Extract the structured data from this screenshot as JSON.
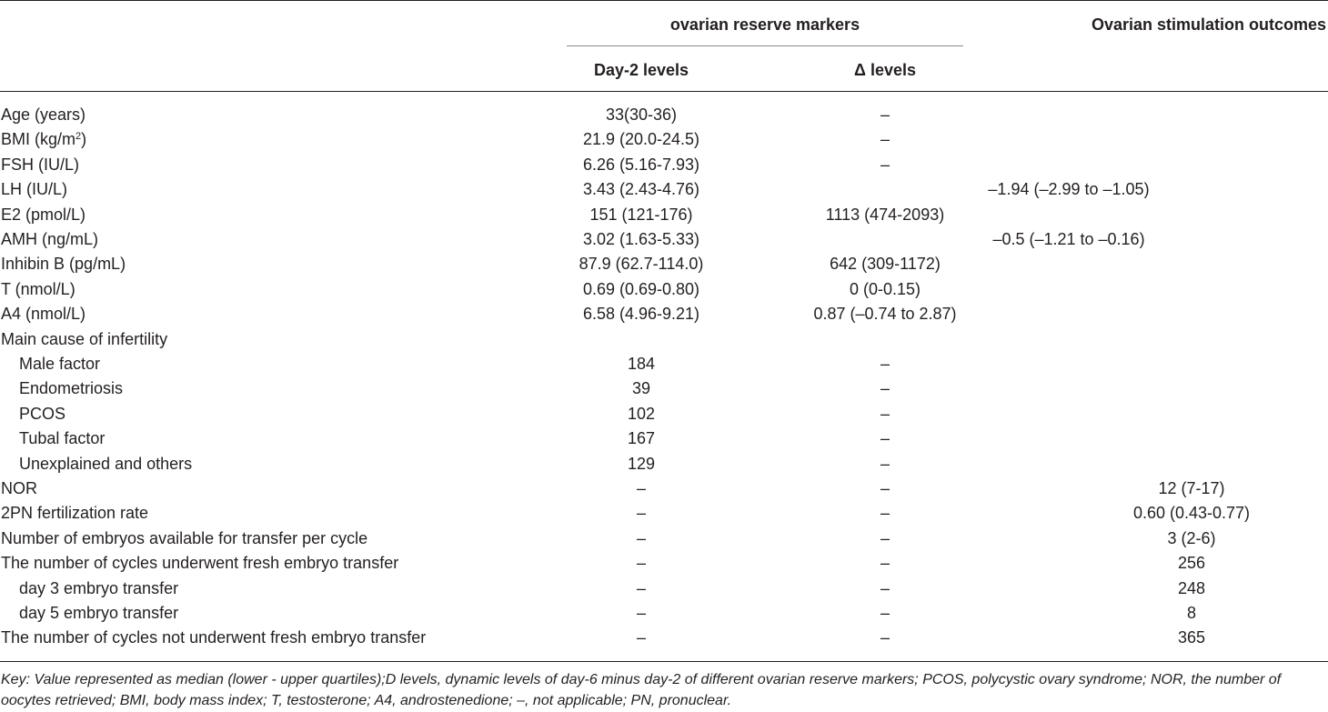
{
  "header": {
    "group_title": "ovarian reserve markers",
    "col_day2": "Day-2 levels",
    "col_delta": "Δ levels",
    "col_outcomes": "Ovarian stimulation outcomes"
  },
  "rows": [
    {
      "label": "Age (years)",
      "day2": "33(30-36)",
      "delta": "–",
      "outcome": ""
    },
    {
      "label": "BMI (kg/m",
      "label_sup": "2",
      "label_end": ")",
      "day2": "21.9 (20.0-24.5)",
      "delta": "–",
      "outcome": ""
    },
    {
      "label": "FSH (IU/L)",
      "day2": "6.26 (5.16-7.93)",
      "delta": "–",
      "outcome": ""
    },
    {
      "label": "LH (IU/L)",
      "day2": "3.43 (2.43-4.76)",
      "delta": "",
      "outcome": "–1.94 (–2.99 to –1.05)"
    },
    {
      "label": "E2 (pmol/L)",
      "day2": "151 (121-176)",
      "delta": "1113 (474-2093)",
      "outcome": ""
    },
    {
      "label": "AMH (ng/mL)",
      "day2": "3.02 (1.63-5.33)",
      "delta": "",
      "outcome": "–0.5 (–1.21 to –0.16)"
    },
    {
      "label": "Inhibin B (pg/mL)",
      "day2": "87.9 (62.7-114.0)",
      "delta": "642 (309-1172)",
      "outcome": ""
    },
    {
      "label": "T (nmol/L)",
      "day2": "0.69 (0.69-0.80)",
      "delta": "0 (0-0.15)",
      "outcome": ""
    },
    {
      "label": "A4 (nmol/L)",
      "day2": "6.58 (4.96-9.21)",
      "delta": "0.87 (–0.74 to 2.87)",
      "outcome": ""
    },
    {
      "label": "Main cause of infertility",
      "day2": "",
      "delta": "",
      "outcome": ""
    },
    {
      "label": "Male factor",
      "indent": true,
      "day2": "184",
      "delta": "–",
      "outcome": ""
    },
    {
      "label": "Endometriosis",
      "indent": true,
      "day2": "39",
      "delta": "–",
      "outcome": ""
    },
    {
      "label": "PCOS",
      "indent": true,
      "day2": "102",
      "delta": "–",
      "outcome": ""
    },
    {
      "label": "Tubal factor",
      "indent": true,
      "day2": "167",
      "delta": "–",
      "outcome": ""
    },
    {
      "label": "Unexplained and others",
      "indent": true,
      "day2": "129",
      "delta": "–",
      "outcome": ""
    },
    {
      "label": "NOR",
      "day2": "–",
      "delta": "–",
      "outcome": "12 (7-17)"
    },
    {
      "label": "2PN fertilization rate",
      "day2": "–",
      "delta": "–",
      "outcome": "0.60 (0.43-0.77)"
    },
    {
      "label": "Number of embryos available for transfer per cycle",
      "day2": "–",
      "delta": "–",
      "outcome": "3 (2-6)"
    },
    {
      "label": "The number of cycles underwent fresh embryo transfer",
      "day2": "–",
      "delta": "–",
      "outcome": "256"
    },
    {
      "label": "day 3 embryo transfer",
      "indent": true,
      "day2": "–",
      "delta": "–",
      "outcome": "248"
    },
    {
      "label": "day 5 embryo transfer",
      "indent": true,
      "day2": "–",
      "delta": "–",
      "outcome": "8"
    },
    {
      "label": "The number of cycles not underwent fresh embryo transfer",
      "day2": "–",
      "delta": "–",
      "outcome": "365"
    }
  ],
  "footnote": "Key: Value represented as median (lower - upper quartiles);D levels, dynamic levels of day-6 minus day-2 of different ovarian reserve markers; PCOS, polycystic ovary syndrome; NOR, the number of oocytes retrieved; BMI, body mass index; T, testosterone; A4, androstenedione; –, not applicable; PN, pronuclear."
}
